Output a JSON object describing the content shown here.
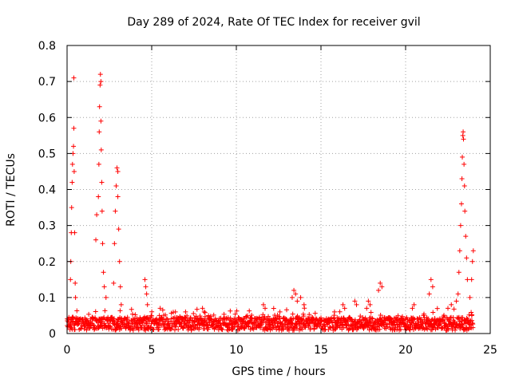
{
  "chart_data": {
    "type": "scatter",
    "title": "Day 289 of 2024, Rate Of TEC Index for receiver gvil",
    "xlabel": "GPS time / hours",
    "ylabel": "ROTI / TECUs",
    "xlim": [
      0,
      25
    ],
    "ylim": [
      0,
      0.8
    ],
    "xticks": [
      0,
      5,
      10,
      15,
      20,
      25
    ],
    "xtick_labels": [
      "0",
      "5",
      "10",
      "15",
      "20",
      "25"
    ],
    "yticks": [
      0,
      0.1,
      0.2,
      0.3,
      0.4,
      0.5,
      0.6,
      0.7,
      0.8
    ],
    "ytick_labels": [
      "0",
      "0.1",
      "0.2",
      "0.3",
      "0.4",
      "0.5",
      "0.6",
      "0.7",
      "0.8"
    ],
    "grid": true,
    "marker": "+",
    "color": "#ff0000",
    "series": [
      {
        "name": "ROTI",
        "background_level": 0.03,
        "points": [
          {
            "x": 0.2,
            "y": 0.15
          },
          {
            "x": 0.22,
            "y": 0.2
          },
          {
            "x": 0.25,
            "y": 0.28
          },
          {
            "x": 0.27,
            "y": 0.35
          },
          {
            "x": 0.3,
            "y": 0.42
          },
          {
            "x": 0.32,
            "y": 0.47
          },
          {
            "x": 0.35,
            "y": 0.5
          },
          {
            "x": 0.38,
            "y": 0.52
          },
          {
            "x": 0.4,
            "y": 0.71
          },
          {
            "x": 0.4,
            "y": 0.57
          },
          {
            "x": 0.42,
            "y": 0.45
          },
          {
            "x": 0.45,
            "y": 0.28
          },
          {
            "x": 0.48,
            "y": 0.14
          },
          {
            "x": 0.5,
            "y": 0.1
          },
          {
            "x": 1.7,
            "y": 0.26
          },
          {
            "x": 1.75,
            "y": 0.33
          },
          {
            "x": 1.85,
            "y": 0.38
          },
          {
            "x": 1.88,
            "y": 0.47
          },
          {
            "x": 1.9,
            "y": 0.56
          },
          {
            "x": 1.92,
            "y": 0.63
          },
          {
            "x": 1.95,
            "y": 0.69
          },
          {
            "x": 1.97,
            "y": 0.72
          },
          {
            "x": 2.0,
            "y": 0.7
          },
          {
            "x": 2.0,
            "y": 0.59
          },
          {
            "x": 2.02,
            "y": 0.51
          },
          {
            "x": 2.05,
            "y": 0.42
          },
          {
            "x": 2.07,
            "y": 0.34
          },
          {
            "x": 2.1,
            "y": 0.25
          },
          {
            "x": 2.15,
            "y": 0.17
          },
          {
            "x": 2.2,
            "y": 0.13
          },
          {
            "x": 2.3,
            "y": 0.1
          },
          {
            "x": 2.75,
            "y": 0.14
          },
          {
            "x": 2.8,
            "y": 0.25
          },
          {
            "x": 2.85,
            "y": 0.34
          },
          {
            "x": 2.9,
            "y": 0.41
          },
          {
            "x": 2.95,
            "y": 0.46
          },
          {
            "x": 3.0,
            "y": 0.45
          },
          {
            "x": 3.0,
            "y": 0.38
          },
          {
            "x": 3.05,
            "y": 0.29
          },
          {
            "x": 3.1,
            "y": 0.2
          },
          {
            "x": 3.15,
            "y": 0.13
          },
          {
            "x": 3.2,
            "y": 0.08
          },
          {
            "x": 4.6,
            "y": 0.15
          },
          {
            "x": 4.65,
            "y": 0.13
          },
          {
            "x": 4.7,
            "y": 0.11
          },
          {
            "x": 4.75,
            "y": 0.08
          },
          {
            "x": 5.5,
            "y": 0.07
          },
          {
            "x": 6.4,
            "y": 0.06
          },
          {
            "x": 7.0,
            "y": 0.06
          },
          {
            "x": 8.0,
            "y": 0.07
          },
          {
            "x": 8.1,
            "y": 0.06
          },
          {
            "x": 11.6,
            "y": 0.08
          },
          {
            "x": 11.7,
            "y": 0.07
          },
          {
            "x": 13.3,
            "y": 0.1
          },
          {
            "x": 13.4,
            "y": 0.12
          },
          {
            "x": 13.5,
            "y": 0.11
          },
          {
            "x": 13.6,
            "y": 0.09
          },
          {
            "x": 13.8,
            "y": 0.1
          },
          {
            "x": 14.0,
            "y": 0.08
          },
          {
            "x": 15.8,
            "y": 0.06
          },
          {
            "x": 16.3,
            "y": 0.08
          },
          {
            "x": 16.4,
            "y": 0.07
          },
          {
            "x": 17.0,
            "y": 0.09
          },
          {
            "x": 17.1,
            "y": 0.08
          },
          {
            "x": 17.7,
            "y": 0.07
          },
          {
            "x": 17.8,
            "y": 0.09
          },
          {
            "x": 17.9,
            "y": 0.08
          },
          {
            "x": 18.4,
            "y": 0.12
          },
          {
            "x": 18.5,
            "y": 0.14
          },
          {
            "x": 18.6,
            "y": 0.13
          },
          {
            "x": 20.4,
            "y": 0.07
          },
          {
            "x": 20.5,
            "y": 0.08
          },
          {
            "x": 21.4,
            "y": 0.11
          },
          {
            "x": 21.5,
            "y": 0.15
          },
          {
            "x": 21.6,
            "y": 0.13
          },
          {
            "x": 22.5,
            "y": 0.07
          },
          {
            "x": 22.7,
            "y": 0.08
          },
          {
            "x": 23.0,
            "y": 0.09
          },
          {
            "x": 23.1,
            "y": 0.11
          },
          {
            "x": 23.15,
            "y": 0.17
          },
          {
            "x": 23.2,
            "y": 0.23
          },
          {
            "x": 23.25,
            "y": 0.3
          },
          {
            "x": 23.3,
            "y": 0.36
          },
          {
            "x": 23.33,
            "y": 0.43
          },
          {
            "x": 23.35,
            "y": 0.49
          },
          {
            "x": 23.38,
            "y": 0.55
          },
          {
            "x": 23.4,
            "y": 0.56
          },
          {
            "x": 23.42,
            "y": 0.54
          },
          {
            "x": 23.45,
            "y": 0.47
          },
          {
            "x": 23.48,
            "y": 0.41
          },
          {
            "x": 23.5,
            "y": 0.34
          },
          {
            "x": 23.55,
            "y": 0.27
          },
          {
            "x": 23.6,
            "y": 0.21
          },
          {
            "x": 23.65,
            "y": 0.15
          },
          {
            "x": 23.8,
            "y": 0.1
          },
          {
            "x": 23.9,
            "y": 0.15
          },
          {
            "x": 23.95,
            "y": 0.2
          },
          {
            "x": 24.0,
            "y": 0.23
          }
        ]
      }
    ]
  }
}
